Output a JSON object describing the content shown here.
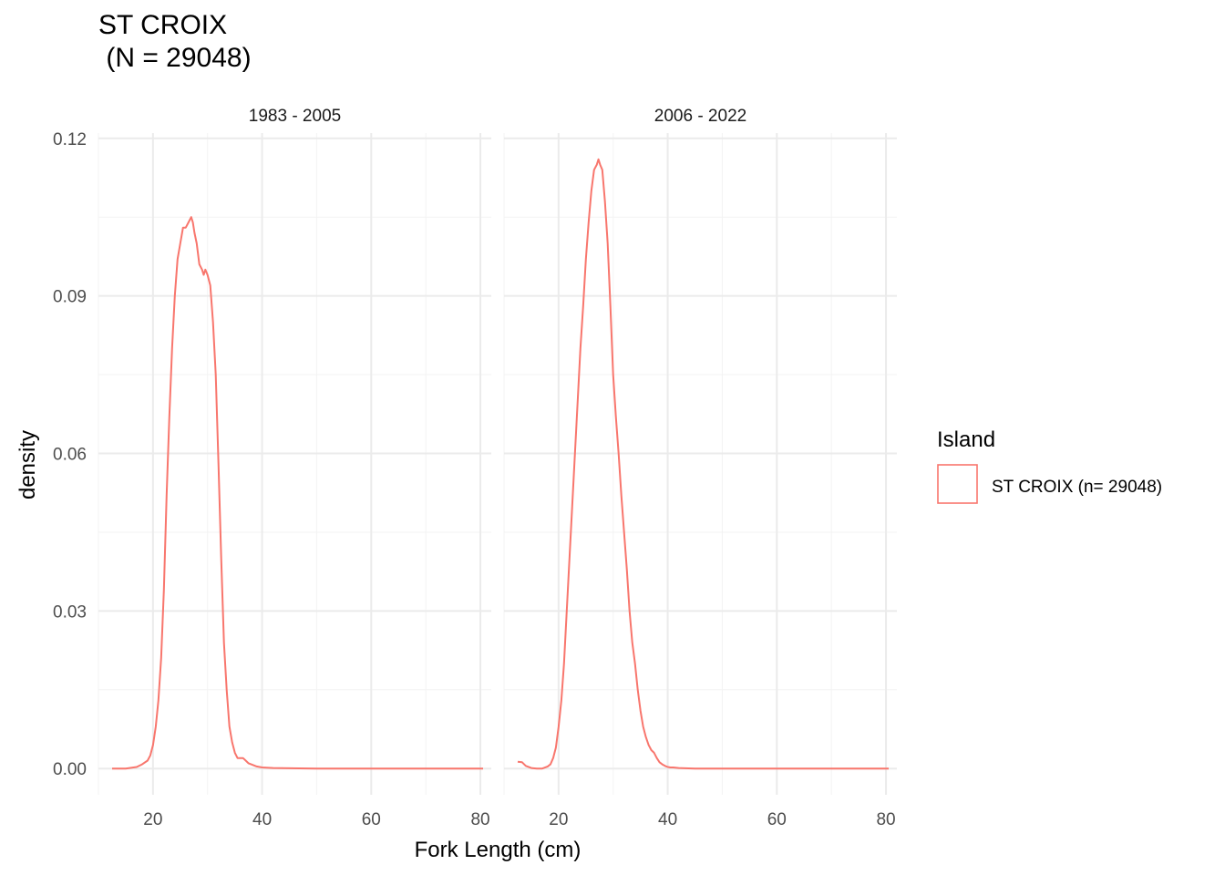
{
  "title_line1": "ST CROIX",
  "title_line2": " (N = 29048)",
  "chart_data": {
    "type": "line",
    "subtype": "density",
    "xlabel": "Fork Length (cm)",
    "ylabel": "density",
    "xlim": [
      10,
      82
    ],
    "ylim": [
      -0.005,
      0.121
    ],
    "x_ticks": [
      20,
      40,
      60,
      80
    ],
    "y_ticks": [
      0.0,
      0.03,
      0.06,
      0.09,
      0.12
    ],
    "y_tick_labels": [
      "0.00",
      "0.03",
      "0.06",
      "0.09",
      "0.12"
    ],
    "grid": true,
    "color": "#F8766D",
    "legend": {
      "title": "Island",
      "position": "right",
      "entries": [
        "ST CROIX (n= 29048)"
      ]
    },
    "panels": [
      {
        "label": "1983 - 2005",
        "x": [
          12.5,
          15,
          17,
          18,
          19,
          19.5,
          20,
          20.5,
          21,
          21.5,
          22,
          22.5,
          23,
          23.5,
          24,
          24.5,
          25,
          25.5,
          26,
          26.5,
          27,
          27.3,
          27.6,
          28,
          28.5,
          29,
          29.3,
          29.6,
          30,
          30.5,
          31,
          31.5,
          32,
          32.5,
          33,
          33.5,
          34,
          34.5,
          35,
          35.5,
          36,
          36.5,
          37,
          37.5,
          38,
          39,
          40,
          42,
          50,
          60,
          70,
          80.5
        ],
        "y": [
          0,
          0,
          0.0003,
          0.0008,
          0.0015,
          0.0025,
          0.0045,
          0.008,
          0.013,
          0.021,
          0.034,
          0.052,
          0.067,
          0.08,
          0.09,
          0.097,
          0.1,
          0.103,
          0.103,
          0.104,
          0.105,
          0.104,
          0.102,
          0.1,
          0.096,
          0.095,
          0.094,
          0.095,
          0.094,
          0.092,
          0.085,
          0.075,
          0.058,
          0.04,
          0.024,
          0.015,
          0.008,
          0.005,
          0.003,
          0.002,
          0.002,
          0.002,
          0.0015,
          0.001,
          0.0008,
          0.0004,
          0.0002,
          0.0001,
          0,
          0,
          0,
          0
        ]
      },
      {
        "label": "2006 - 2022",
        "x": [
          12.5,
          13.3,
          14,
          15,
          16,
          17,
          18,
          18.5,
          19,
          19.5,
          20,
          20.5,
          21,
          21.5,
          22,
          22.5,
          23,
          23.5,
          24,
          24.5,
          25,
          25.5,
          26,
          26.5,
          27,
          27.3,
          27.6,
          28,
          28.5,
          29,
          29.5,
          30,
          30.5,
          31,
          31.5,
          32,
          32.5,
          33,
          33.5,
          34,
          34.5,
          35,
          35.5,
          36,
          36.5,
          37,
          37.5,
          38,
          38.5,
          39,
          39.5,
          40,
          40.5,
          41,
          42,
          45,
          50,
          60,
          70,
          80.5
        ],
        "y": [
          0.0013,
          0.0012,
          0.0005,
          0.0001,
          0,
          0,
          0.0004,
          0.0008,
          0.002,
          0.004,
          0.008,
          0.013,
          0.02,
          0.03,
          0.04,
          0.05,
          0.06,
          0.07,
          0.08,
          0.088,
          0.097,
          0.104,
          0.11,
          0.114,
          0.115,
          0.116,
          0.115,
          0.114,
          0.108,
          0.1,
          0.088,
          0.075,
          0.067,
          0.06,
          0.052,
          0.045,
          0.038,
          0.03,
          0.024,
          0.02,
          0.015,
          0.011,
          0.008,
          0.006,
          0.0045,
          0.0035,
          0.003,
          0.002,
          0.0012,
          0.0008,
          0.0005,
          0.0003,
          0.0002,
          0.0002,
          0.0001,
          0,
          0,
          0,
          0,
          0
        ]
      }
    ]
  }
}
